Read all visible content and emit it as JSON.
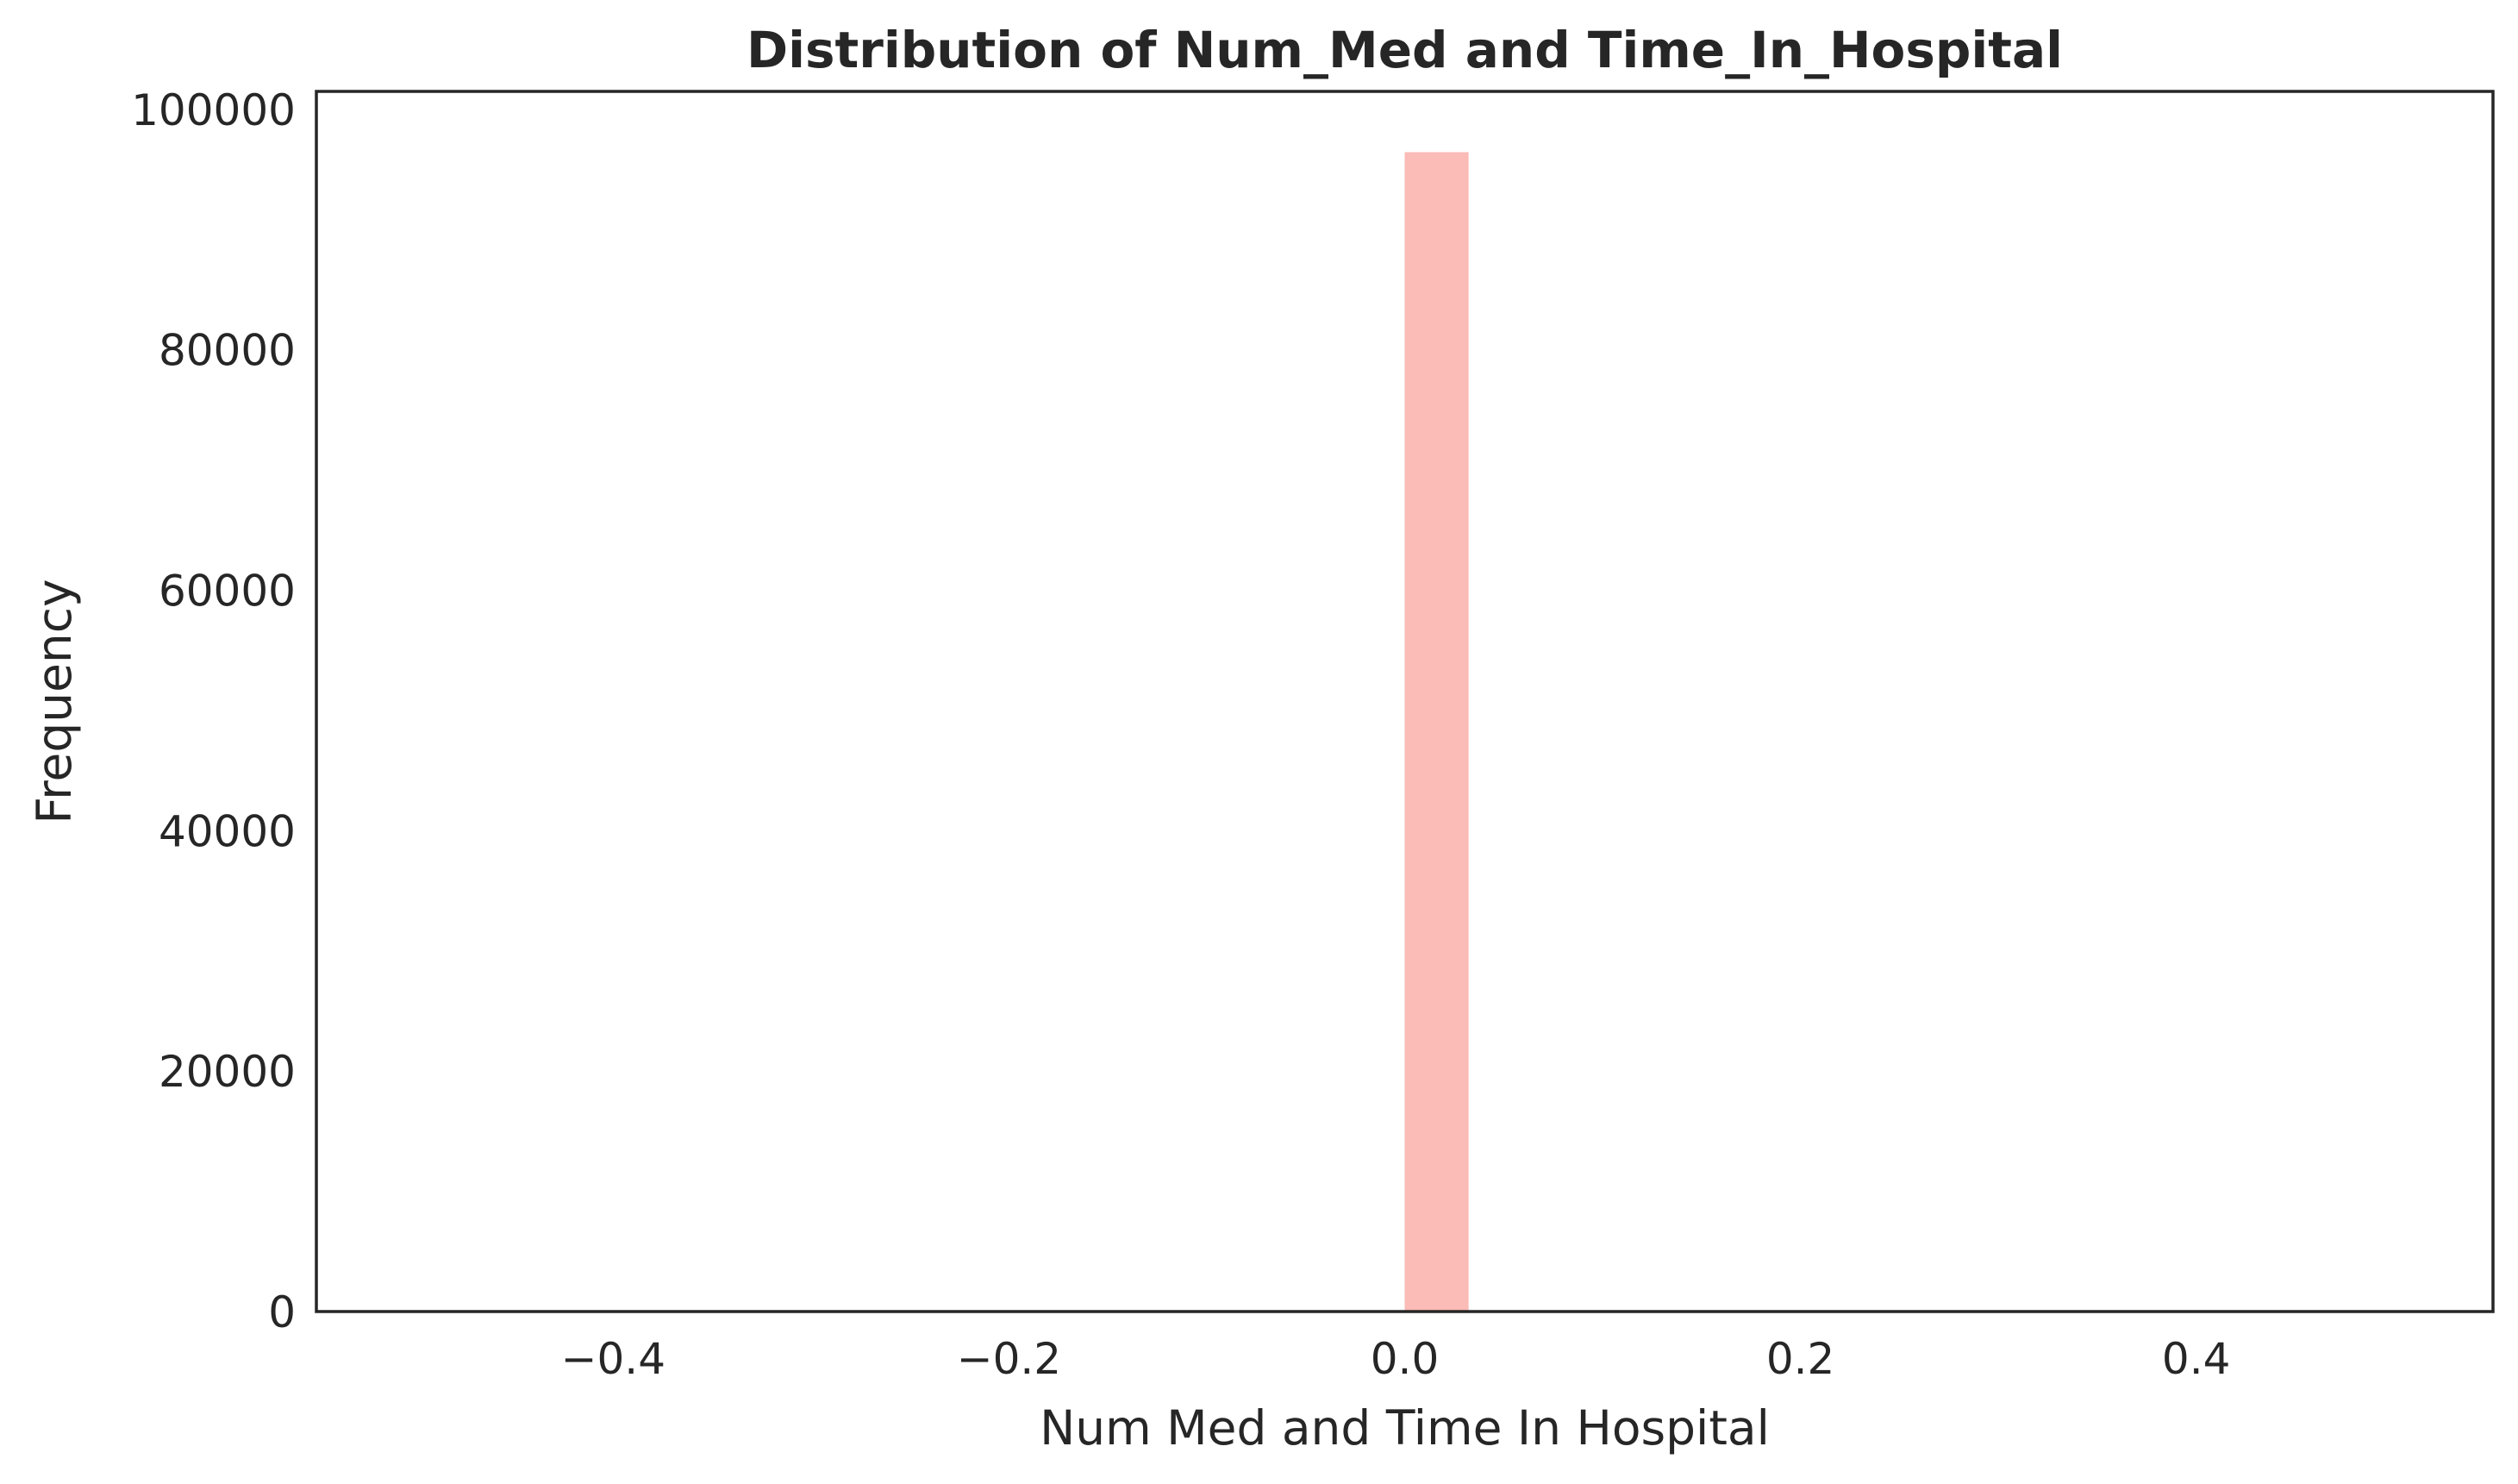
{
  "chart_data": {
    "type": "bar",
    "title": "Distribution of Num_Med and Time_In_Hospital",
    "xlabel": "Num Med and Time In Hospital",
    "ylabel": "Frequency",
    "xlim": [
      -0.55,
      0.55
    ],
    "ylim": [
      0,
      101500
    ],
    "x_ticks": [
      -0.4,
      -0.2,
      0.0,
      0.2,
      0.4
    ],
    "x_tick_labels": [
      "−0.4",
      "−0.2",
      "0.0",
      "0.2",
      "0.4"
    ],
    "y_ticks": [
      0,
      20000,
      40000,
      60000,
      80000,
      100000
    ],
    "y_tick_labels": [
      "0",
      "20000",
      "40000",
      "60000",
      "80000",
      "100000"
    ],
    "bins": [
      {
        "x_start": 0.0,
        "x_end": 0.0323,
        "value": 96446
      }
    ],
    "colors": {
      "bar": "#fbbbb7",
      "axis": "#262626",
      "background": "#ffffff"
    },
    "grid": false,
    "legend": "none"
  }
}
